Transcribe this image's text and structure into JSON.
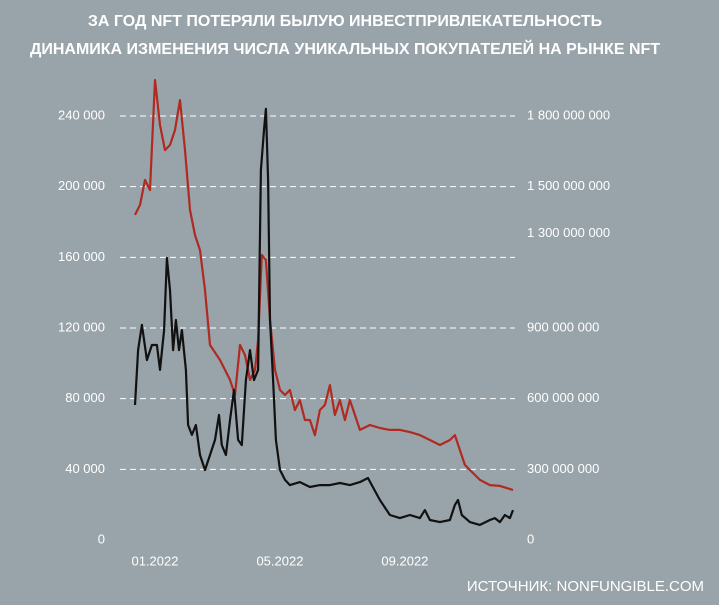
{
  "chart_data": {
    "type": "line",
    "title": "ЗА ГОД NFT ПОТЕРЯЛИ БЫЛУЮ ИНВЕСТПРИВЛЕКАТЕЛЬНОСТЬ",
    "subtitle": "ДИНАМИКА ИЗМЕНЕНИЯ ЧИСЛА УНИКАЛЬНЫХ ПОКУПАТЕЛЕЙ НА РЫНКЕ NFT",
    "source": "ИСТОЧНИК: NONFUNGIBLE.COM",
    "grid": true,
    "xlim": [
      -0.64,
      11.46
    ],
    "xticks": [
      {
        "value": 0,
        "label": "01.2022"
      },
      {
        "value": 4,
        "label": "05.2022"
      },
      {
        "value": 8,
        "label": "09.2022"
      }
    ],
    "ylim": [
      0,
      240000
    ],
    "yticks": [
      0,
      {
        "value": 40000,
        "label": "40 000"
      },
      {
        "value": 80000,
        "label": "80 000"
      },
      {
        "value": 120000,
        "label": "120 000"
      },
      {
        "value": 160000,
        "label": "160 000"
      },
      {
        "value": 200000,
        "label": "200 000"
      },
      {
        "value": 240000,
        "label": "240 000"
      }
    ],
    "y2lim": [
      0,
      1800000000
    ],
    "y2ticks": [
      0,
      {
        "value": 300000000,
        "label": "300 000 000"
      },
      {
        "value": 600000000,
        "label": "600 000 000"
      },
      {
        "value": 900000000,
        "label": "900 000 000"
      },
      {
        "value": 1300000000,
        "label": "1 300 000 000"
      },
      {
        "value": 1500000000,
        "label": "1 500 000 000"
      },
      {
        "value": 1800000000,
        "label": "1 800 000 000"
      }
    ],
    "series": [
      {
        "color": "#b02a22",
        "axis": "y",
        "x": [
          -0.64,
          -0.48,
          -0.32,
          -0.16,
          0,
          0.16,
          0.32,
          0.48,
          0.64,
          0.8,
          0.96,
          1.12,
          1.28,
          1.44,
          1.6,
          1.76,
          2.08,
          2.4,
          2.56,
          2.72,
          2.88,
          3.04,
          3.2,
          3.3,
          3.42,
          3.55,
          3.68,
          3.84,
          4,
          4.16,
          4.32,
          4.48,
          4.64,
          4.8,
          4.96,
          5.12,
          5.28,
          5.44,
          5.6,
          5.76,
          5.92,
          6.08,
          6.24,
          6.4,
          6.56,
          6.88,
          7.2,
          7.52,
          7.84,
          8.16,
          8.48,
          8.8,
          9.12,
          9.44,
          9.6,
          9.76,
          9.92,
          10.08,
          10.4,
          10.72,
          11.04,
          11.46
        ],
        "values": [
          184000,
          189600,
          203800,
          198100,
          260400,
          234900,
          220700,
          223600,
          232100,
          249000,
          220700,
          186800,
          172600,
          164100,
          141500,
          110400,
          101900,
          90600,
          82100,
          110400,
          104700,
          90600,
          96200,
          113200,
          161300,
          158500,
          124500,
          96200,
          84900,
          82100,
          84900,
          73600,
          79200,
          67900,
          67900,
          59400,
          73600,
          76400,
          87700,
          70800,
          79200,
          67900,
          79200,
          70800,
          62300,
          65100,
          63400,
          62300,
          62300,
          61100,
          59400,
          56600,
          53800,
          56600,
          59400,
          50900,
          42500,
          39600,
          34000,
          31100,
          30600,
          28300
        ]
      },
      {
        "color": "#111111",
        "axis": "y2",
        "x": [
          -0.64,
          -0.54,
          -0.42,
          -0.26,
          -0.1,
          0.06,
          0.16,
          0.29,
          0.38,
          0.48,
          0.58,
          0.67,
          0.77,
          0.86,
          0.99,
          1.06,
          1.18,
          1.31,
          1.44,
          1.6,
          1.76,
          1.92,
          2.05,
          2.14,
          2.27,
          2.4,
          2.53,
          2.66,
          2.78,
          2.91,
          3.04,
          3.17,
          3.3,
          3.39,
          3.49,
          3.55,
          3.62,
          3.68,
          3.78,
          3.87,
          4,
          4.16,
          4.32,
          4.64,
          4.96,
          5.28,
          5.6,
          5.92,
          6.24,
          6.56,
          6.82,
          6.94,
          7.2,
          7.52,
          7.84,
          8.16,
          8.48,
          8.64,
          8.8,
          9.12,
          9.44,
          9.6,
          9.7,
          9.82,
          10.08,
          10.4,
          10.72,
          10.88,
          11.04,
          11.2,
          11.36,
          11.46
        ],
        "values": [
          573000000,
          806000000,
          913000000,
          764000000,
          828000000,
          828000000,
          722000000,
          891000000,
          1197000000,
          1061000000,
          806000000,
          934000000,
          806000000,
          891000000,
          722000000,
          488000000,
          446000000,
          488000000,
          361000000,
          297000000,
          361000000,
          425000000,
          531000000,
          403000000,
          361000000,
          509000000,
          637000000,
          425000000,
          403000000,
          679000000,
          806000000,
          679000000,
          722000000,
          1571000000,
          1740000000,
          1830000000,
          1528000000,
          934000000,
          679000000,
          425000000,
          297000000,
          255000000,
          233000000,
          246000000,
          225000000,
          233000000,
          233000000,
          242000000,
          233000000,
          246000000,
          263000000,
          233000000,
          170000000,
          106000000,
          93000000,
          106000000,
          93000000,
          127000000,
          85000000,
          76000000,
          85000000,
          149000000,
          170000000,
          106000000,
          76000000,
          64000000,
          85000000,
          93000000,
          76000000,
          106000000,
          93000000,
          127000000
        ]
      }
    ]
  }
}
